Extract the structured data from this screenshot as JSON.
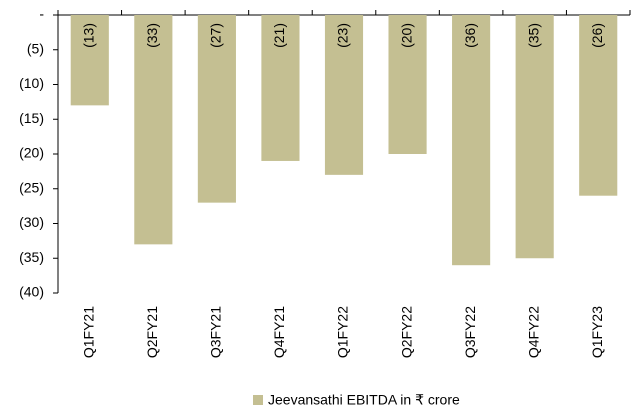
{
  "chart_data": {
    "type": "bar",
    "categories": [
      "Q1FY21",
      "Q2FY21",
      "Q3FY21",
      "Q4FY21",
      "Q1FY22",
      "Q2FY22",
      "Q3FY22",
      "Q4FY22",
      "Q1FY23"
    ],
    "series": [
      {
        "name": "Jeevansathi EBITDA in ₹ crore",
        "color": "#c4bf92",
        "values": [
          -13,
          -33,
          -27,
          -21,
          -23,
          -20,
          -36,
          -35,
          -26
        ],
        "value_labels": [
          "(13)",
          "(33)",
          "(27)",
          "(21)",
          "(23)",
          "(20)",
          "(36)",
          "(35)",
          "(26)"
        ]
      }
    ],
    "ylim": [
      -40,
      0
    ],
    "yticks": [
      {
        "value": 0,
        "label": "-"
      },
      {
        "value": -5,
        "label": "(5)"
      },
      {
        "value": -10,
        "label": "(10)"
      },
      {
        "value": -15,
        "label": "(15)"
      },
      {
        "value": -20,
        "label": "(20)"
      },
      {
        "value": -25,
        "label": "(25)"
      },
      {
        "value": -30,
        "label": "(30)"
      },
      {
        "value": -35,
        "label": "(35)"
      },
      {
        "value": -40,
        "label": "(40)"
      }
    ],
    "legend": "bottom"
  }
}
